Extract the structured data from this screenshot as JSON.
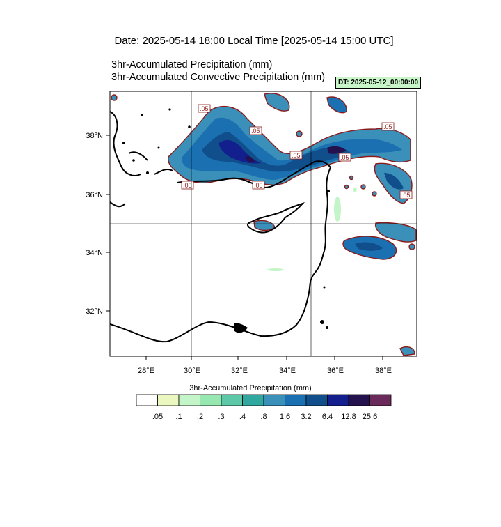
{
  "header": {
    "date_title": "Date: 2025-05-14  18:00 Local Time [2025-05-14  15:00 UTC]",
    "var_title_1": "3hr-Accumulated Precipitation   (mm)",
    "var_title_2": "3hr-Accumulated Convective Precipitation   (mm)",
    "dt_badge": "DT: 2025-05-12_00:00:00"
  },
  "map": {
    "lon_range": [
      26.6,
      39.4
    ],
    "lat_range": [
      30.4,
      39.4
    ],
    "lon_ticks": [
      "28°E",
      "30°E",
      "32°E",
      "34°E",
      "36°E",
      "38°E"
    ],
    "lat_ticks": [
      "32°N",
      "34°N",
      "36°N",
      "38°N"
    ],
    "gridlines": {
      "lon": [
        30,
        35
      ],
      "lat": [
        35
      ]
    },
    "contour_label": ".05",
    "colors": {
      "coast": "#000000",
      "contour_edge": "#8b1a1a",
      "badge_bg": "#c8f5c8"
    }
  },
  "colorbar": {
    "title": "3hr-Accumulated Precipitation   (mm)",
    "labels": [
      ".05",
      ".1",
      ".2",
      ".3",
      ".4",
      ".8",
      "1.6",
      "3.2",
      "6.4",
      "12.8",
      "25.6"
    ],
    "colors": [
      "#ffffff",
      "#eaf8c0",
      "#c4f5c8",
      "#96e8b0",
      "#5cc8a8",
      "#30a8a0",
      "#3a90b8",
      "#1a70b0",
      "#104f8c",
      "#121f8c",
      "#24124f",
      "#6a2a5a"
    ]
  }
}
